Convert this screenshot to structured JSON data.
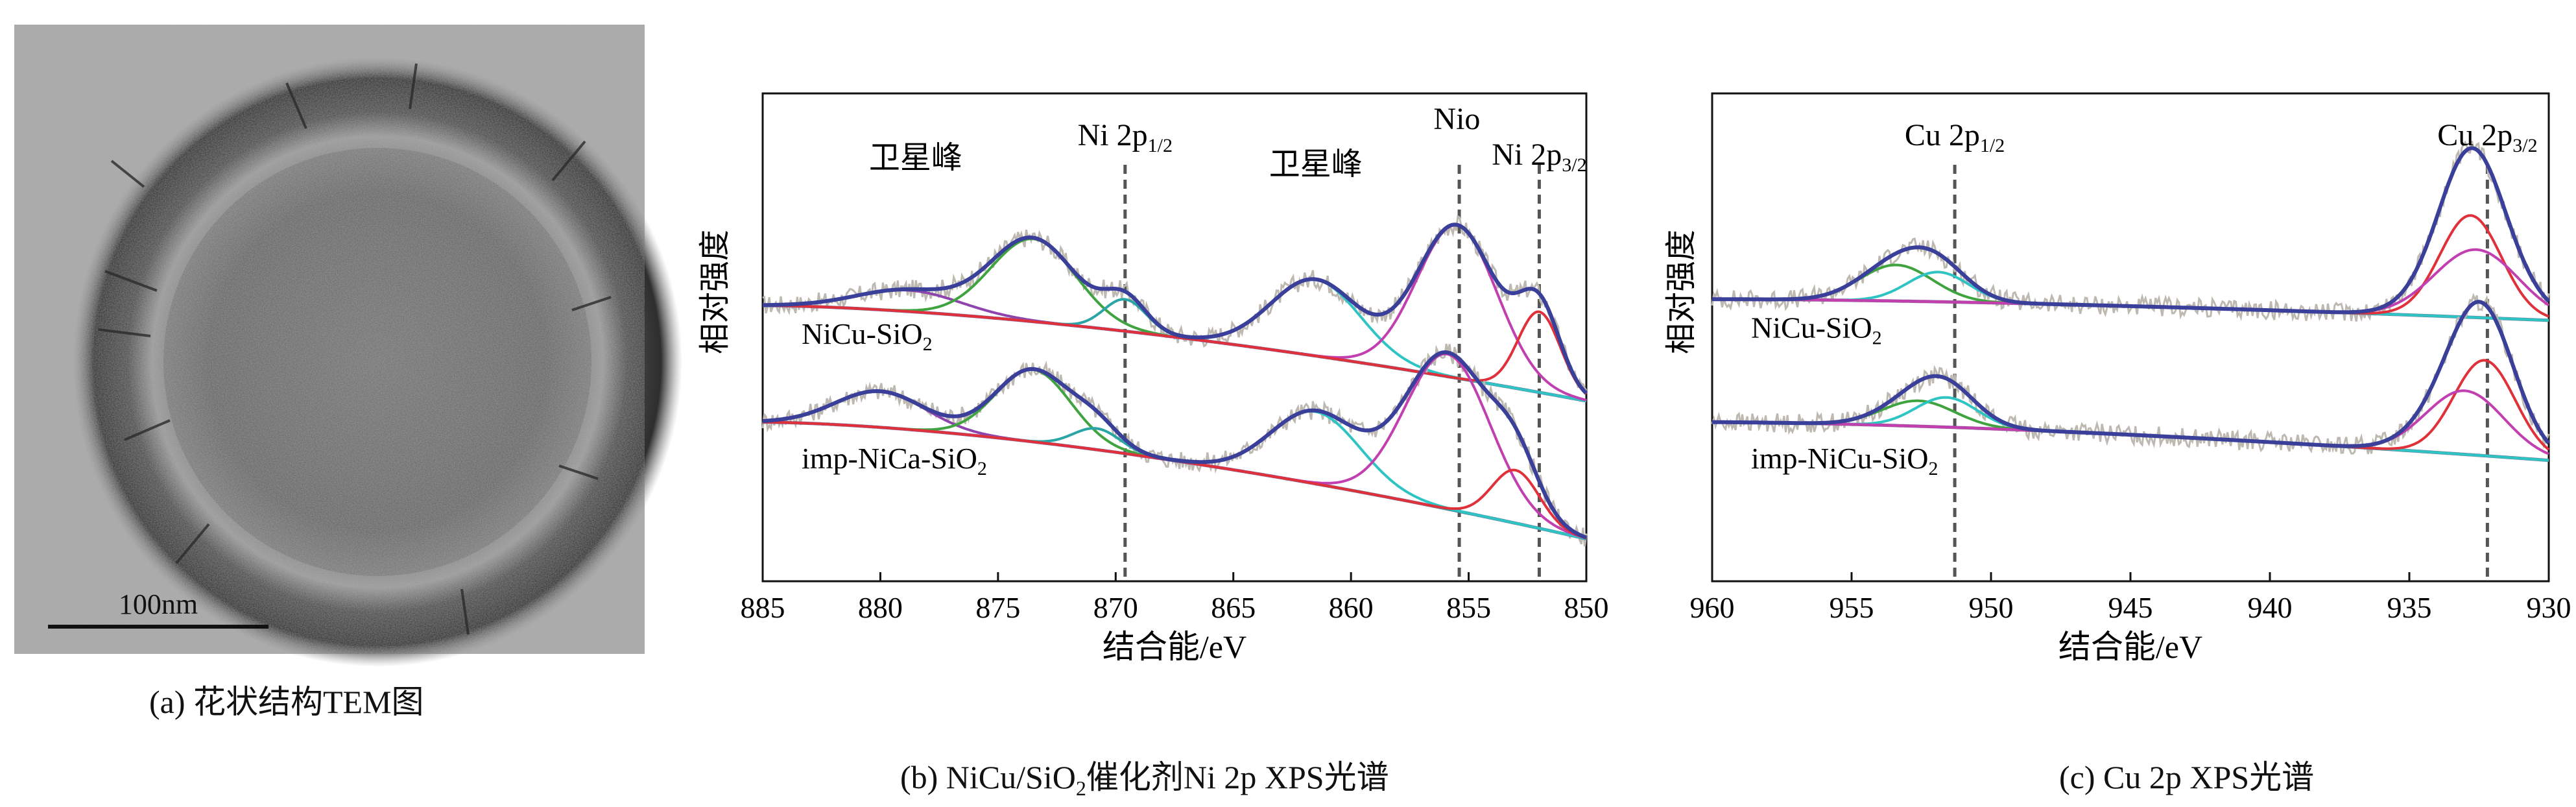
{
  "panel_a": {
    "caption": "(a) 花状结构TEM图",
    "scale_bar_label": "100nm"
  },
  "chart_data": [
    {
      "type": "line",
      "caption_prefix": "(b) NiCu/SiO",
      "caption_sub": "2",
      "caption_suffix": "催化剂Ni 2p XPS光谱",
      "xlabel": "结合能/eV",
      "ylabel": "相对强度",
      "xlim": [
        885,
        850
      ],
      "x_reversed": true,
      "xticks": [
        885,
        880,
        875,
        870,
        865,
        860,
        855,
        850
      ],
      "grid": false,
      "annotations": [
        {
          "text": "卫星峰",
          "x": 878.5
        },
        {
          "text": "卫星峰",
          "x": 861.5
        },
        {
          "text": "Nio",
          "x": 855.5
        },
        {
          "text": "Ni 2p",
          "sub": "1/2",
          "x": 869.6
        },
        {
          "text": "Ni 2p",
          "sub": "3/2",
          "x": 852.0
        }
      ],
      "reference_lines_x": [
        869.6,
        855.4,
        852.0
      ],
      "series": [
        {
          "name": "NiCu-SiO",
          "name_sub": "2",
          "offset": 0.55,
          "background": {
            "x": [
              885,
              850
            ],
            "y": [
              0.0,
              -0.45
            ]
          },
          "components": [
            {
              "color": "#8e44ad",
              "center": 878.8,
              "height": 0.1,
              "width": 2.2
            },
            {
              "color": "#3fa33f",
              "center": 873.5,
              "height": 0.39,
              "width": 1.8
            },
            {
              "color": "#2aa5a5",
              "center": 869.6,
              "height": 0.15,
              "width": 0.9
            },
            {
              "color": "#2ec4c4",
              "center": 861.5,
              "height": 0.36,
              "width": 1.9
            },
            {
              "color": "#c23fb0",
              "center": 855.5,
              "height": 0.72,
              "width": 1.7
            },
            {
              "color": "#e0303a",
              "center": 852.0,
              "height": 0.38,
              "width": 0.9
            }
          ]
        },
        {
          "name": "imp-NiCa-SiO",
          "name_sub": "2",
          "offset": 0.0,
          "background": {
            "x": [
              885,
              850
            ],
            "y": [
              0.0,
              -0.55
            ]
          },
          "components": [
            {
              "color": "#8e44ad",
              "center": 880.0,
              "height": 0.17,
              "width": 1.9
            },
            {
              "color": "#3fa33f",
              "center": 873.5,
              "height": 0.34,
              "width": 1.6
            },
            {
              "color": "#2aa5a5",
              "center": 870.8,
              "height": 0.1,
              "width": 1.0
            },
            {
              "color": "#2ec4c4",
              "center": 861.5,
              "height": 0.34,
              "width": 1.9
            },
            {
              "color": "#c23fb0",
              "center": 855.9,
              "height": 0.73,
              "width": 1.8
            },
            {
              "color": "#e0303a",
              "center": 853.0,
              "height": 0.25,
              "width": 1.0
            }
          ]
        }
      ]
    },
    {
      "type": "line",
      "caption": "(c) Cu 2p XPS光谱",
      "xlabel": "结合能/eV",
      "ylabel": "相对强度",
      "xlim": [
        960,
        930
      ],
      "x_reversed": true,
      "xticks": [
        960,
        955,
        950,
        945,
        940,
        935,
        930
      ],
      "grid": false,
      "annotations": [
        {
          "text": "Cu 2p",
          "sub": "1/2",
          "x": 951.3
        },
        {
          "text": "Cu 2p",
          "sub": "3/2",
          "x": 932.2
        }
      ],
      "reference_lines_x": [
        951.3,
        932.2
      ],
      "series": [
        {
          "name": "NiCu-SiO",
          "name_sub": "2",
          "offset": 0.58,
          "background": {
            "x": [
              960,
              930
            ],
            "y": [
              0.0,
              -0.1
            ]
          },
          "components": [
            {
              "color": "#3fa33f",
              "center": 953.4,
              "height": 0.17,
              "width": 1.3
            },
            {
              "color": "#2ec4c4",
              "center": 951.9,
              "height": 0.14,
              "width": 1.1
            },
            {
              "color": "#e0303a",
              "center": 932.8,
              "height": 0.48,
              "width": 1.1
            },
            {
              "color": "#c23fb0",
              "center": 932.6,
              "height": 0.32,
              "width": 1.5
            }
          ]
        },
        {
          "name": "imp-NiCu-SiO",
          "name_sub": "2",
          "offset": 0.0,
          "background": {
            "x": [
              960,
              930
            ],
            "y": [
              0.0,
              -0.18
            ]
          },
          "components": [
            {
              "color": "#3fa33f",
              "center": 952.6,
              "height": 0.12,
              "width": 1.3
            },
            {
              "color": "#2ec4c4",
              "center": 951.6,
              "height": 0.14,
              "width": 1.1
            },
            {
              "color": "#e0303a",
              "center": 932.3,
              "height": 0.45,
              "width": 1.1
            },
            {
              "color": "#c23fb0",
              "center": 933.0,
              "height": 0.3,
              "width": 1.4
            }
          ]
        }
      ]
    }
  ],
  "colors": {
    "envelope": "#3a3f9a",
    "background_line": "#7a6aa8",
    "raw_data": "#bdb8b0",
    "reference_line": "#555555"
  }
}
